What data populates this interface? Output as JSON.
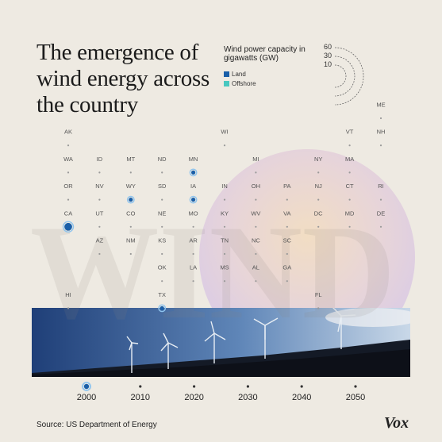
{
  "title": "The emergence of wind energy across the country",
  "legend": {
    "title": "Wind power capacity in gigawatts (GW)",
    "size_scale": [
      60,
      30,
      10
    ],
    "items": [
      {
        "label": "Land",
        "color": "#1a5fa8"
      },
      {
        "label": "Offshore",
        "color": "#48c8c0"
      }
    ]
  },
  "background_word": "WIND",
  "source": "Source: US Department of Energy",
  "logo": "Vox",
  "colors": {
    "background": "#eeeae2",
    "land": "#1a5fa8",
    "offshore": "#48c8c0",
    "dot": "#9a9a9a",
    "label": "#555555"
  },
  "chart_data": {
    "type": "scatter",
    "title": "The emergence of wind energy across the country",
    "xlabel": "",
    "ylabel": "",
    "timeline": {
      "ticks": [
        2000,
        2010,
        2020,
        2030,
        2040,
        2050
      ],
      "current_year": 2000
    },
    "states": [
      {
        "abbr": "ME",
        "col": 10,
        "row": 0,
        "value": 0
      },
      {
        "abbr": "AK",
        "col": 0,
        "row": 1,
        "value": 0
      },
      {
        "abbr": "WI",
        "col": 5,
        "row": 1,
        "value": 0
      },
      {
        "abbr": "VT",
        "col": 9,
        "row": 1,
        "value": 0
      },
      {
        "abbr": "NH",
        "col": 10,
        "row": 1,
        "value": 0
      },
      {
        "abbr": "WA",
        "col": 0,
        "row": 2,
        "value": 0
      },
      {
        "abbr": "ID",
        "col": 1,
        "row": 2,
        "value": 0
      },
      {
        "abbr": "MT",
        "col": 2,
        "row": 2,
        "value": 0
      },
      {
        "abbr": "ND",
        "col": 3,
        "row": 2,
        "value": 0
      },
      {
        "abbr": "MN",
        "col": 4,
        "row": 2,
        "value": 0.29
      },
      {
        "abbr": "MI",
        "col": 6,
        "row": 2,
        "value": 0
      },
      {
        "abbr": "NY",
        "col": 8,
        "row": 2,
        "value": 0
      },
      {
        "abbr": "MA",
        "col": 9,
        "row": 2,
        "value": 0
      },
      {
        "abbr": "OR",
        "col": 0,
        "row": 3,
        "value": 0
      },
      {
        "abbr": "NV",
        "col": 1,
        "row": 3,
        "value": 0
      },
      {
        "abbr": "WY",
        "col": 2,
        "row": 3,
        "value": 0.09
      },
      {
        "abbr": "SD",
        "col": 3,
        "row": 3,
        "value": 0
      },
      {
        "abbr": "IA",
        "col": 4,
        "row": 3,
        "value": 0.24
      },
      {
        "abbr": "IN",
        "col": 5,
        "row": 3,
        "value": 0
      },
      {
        "abbr": "OH",
        "col": 6,
        "row": 3,
        "value": 0
      },
      {
        "abbr": "PA",
        "col": 7,
        "row": 3,
        "value": 0
      },
      {
        "abbr": "NJ",
        "col": 8,
        "row": 3,
        "value": 0
      },
      {
        "abbr": "CT",
        "col": 9,
        "row": 3,
        "value": 0
      },
      {
        "abbr": "RI",
        "col": 10,
        "row": 3,
        "value": 0
      },
      {
        "abbr": "CA",
        "col": 0,
        "row": 4,
        "value": 1.65
      },
      {
        "abbr": "UT",
        "col": 1,
        "row": 4,
        "value": 0
      },
      {
        "abbr": "CO",
        "col": 2,
        "row": 4,
        "value": 0
      },
      {
        "abbr": "NE",
        "col": 3,
        "row": 4,
        "value": 0
      },
      {
        "abbr": "MO",
        "col": 4,
        "row": 4,
        "value": 0
      },
      {
        "abbr": "KY",
        "col": 5,
        "row": 4,
        "value": 0
      },
      {
        "abbr": "WV",
        "col": 6,
        "row": 4,
        "value": 0
      },
      {
        "abbr": "VA",
        "col": 7,
        "row": 4,
        "value": 0
      },
      {
        "abbr": "DC",
        "col": 8,
        "row": 4,
        "value": 0
      },
      {
        "abbr": "MD",
        "col": 9,
        "row": 4,
        "value": 0
      },
      {
        "abbr": "DE",
        "col": 10,
        "row": 4,
        "value": 0
      },
      {
        "abbr": "AZ",
        "col": 1,
        "row": 5,
        "value": 0
      },
      {
        "abbr": "NM",
        "col": 2,
        "row": 5,
        "value": 0
      },
      {
        "abbr": "KS",
        "col": 3,
        "row": 5,
        "value": 0
      },
      {
        "abbr": "AR",
        "col": 4,
        "row": 5,
        "value": 0
      },
      {
        "abbr": "TN",
        "col": 5,
        "row": 5,
        "value": 0
      },
      {
        "abbr": "NC",
        "col": 6,
        "row": 5,
        "value": 0
      },
      {
        "abbr": "SC",
        "col": 7,
        "row": 5,
        "value": 0
      },
      {
        "abbr": "OK",
        "col": 3,
        "row": 6,
        "value": 0
      },
      {
        "abbr": "LA",
        "col": 4,
        "row": 6,
        "value": 0
      },
      {
        "abbr": "MS",
        "col": 5,
        "row": 6,
        "value": 0
      },
      {
        "abbr": "AL",
        "col": 6,
        "row": 6,
        "value": 0
      },
      {
        "abbr": "GA",
        "col": 7,
        "row": 6,
        "value": 0
      },
      {
        "abbr": "HI",
        "col": 0,
        "row": 7,
        "value": 0
      },
      {
        "abbr": "TX",
        "col": 3,
        "row": 7,
        "value": 0.18
      },
      {
        "abbr": "FL",
        "col": 8,
        "row": 7,
        "value": 0
      }
    ]
  }
}
